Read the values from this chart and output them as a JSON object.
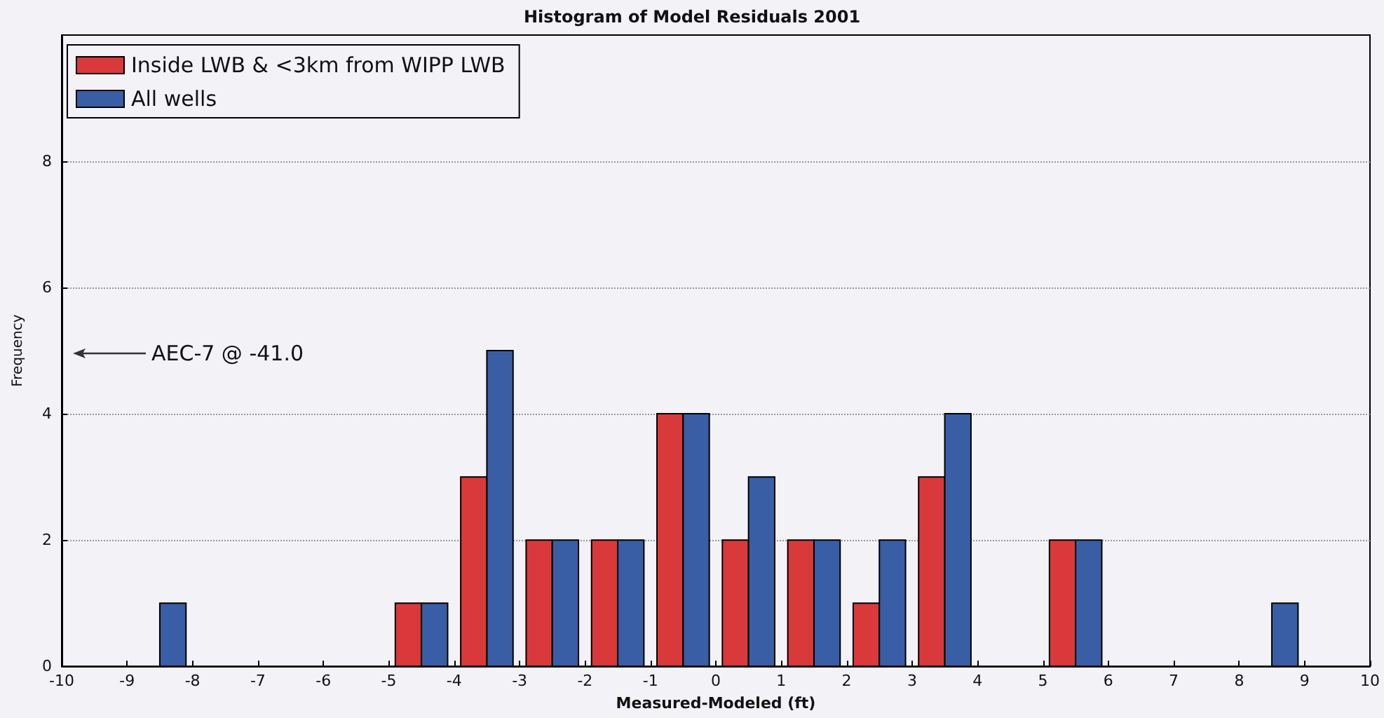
{
  "chart_data": {
    "type": "histogram",
    "title": "Histogram of Model Residuals 2001",
    "xlabel": "Measured-Modeled (ft)",
    "ylabel": "Frequency",
    "bins": [
      -10,
      -9,
      -8,
      -7,
      -6,
      -5,
      -4,
      -3,
      -2,
      -1,
      0,
      1,
      2,
      3,
      4,
      5,
      6,
      7,
      8,
      9,
      10
    ],
    "series": [
      {
        "name": "Inside LWB & <3km from WIPP LWB",
        "color": "#d9393b",
        "values": [
          0,
          0,
          0,
          0,
          0,
          1,
          3,
          2,
          2,
          4,
          2,
          2,
          1,
          3,
          0,
          2,
          0,
          0,
          0,
          0
        ]
      },
      {
        "name": "All wells",
        "color": "#3a5ea5",
        "values": [
          0,
          1,
          0,
          0,
          0,
          1,
          5,
          2,
          2,
          4,
          3,
          2,
          2,
          4,
          0,
          2,
          0,
          0,
          1,
          0
        ]
      }
    ],
    "xlim": [
      -10,
      10
    ],
    "xticks": [
      -10,
      -9,
      -8,
      -7,
      -6,
      -5,
      -4,
      -3,
      -2,
      -1,
      0,
      1,
      2,
      3,
      4,
      5,
      6,
      7,
      8,
      9,
      10
    ],
    "ylim": [
      0,
      10
    ],
    "yticks": [
      0,
      2,
      4,
      6,
      8
    ],
    "grid": "y",
    "legend": "top left",
    "annotations": [
      "AEC-7 @ -41.0"
    ]
  }
}
